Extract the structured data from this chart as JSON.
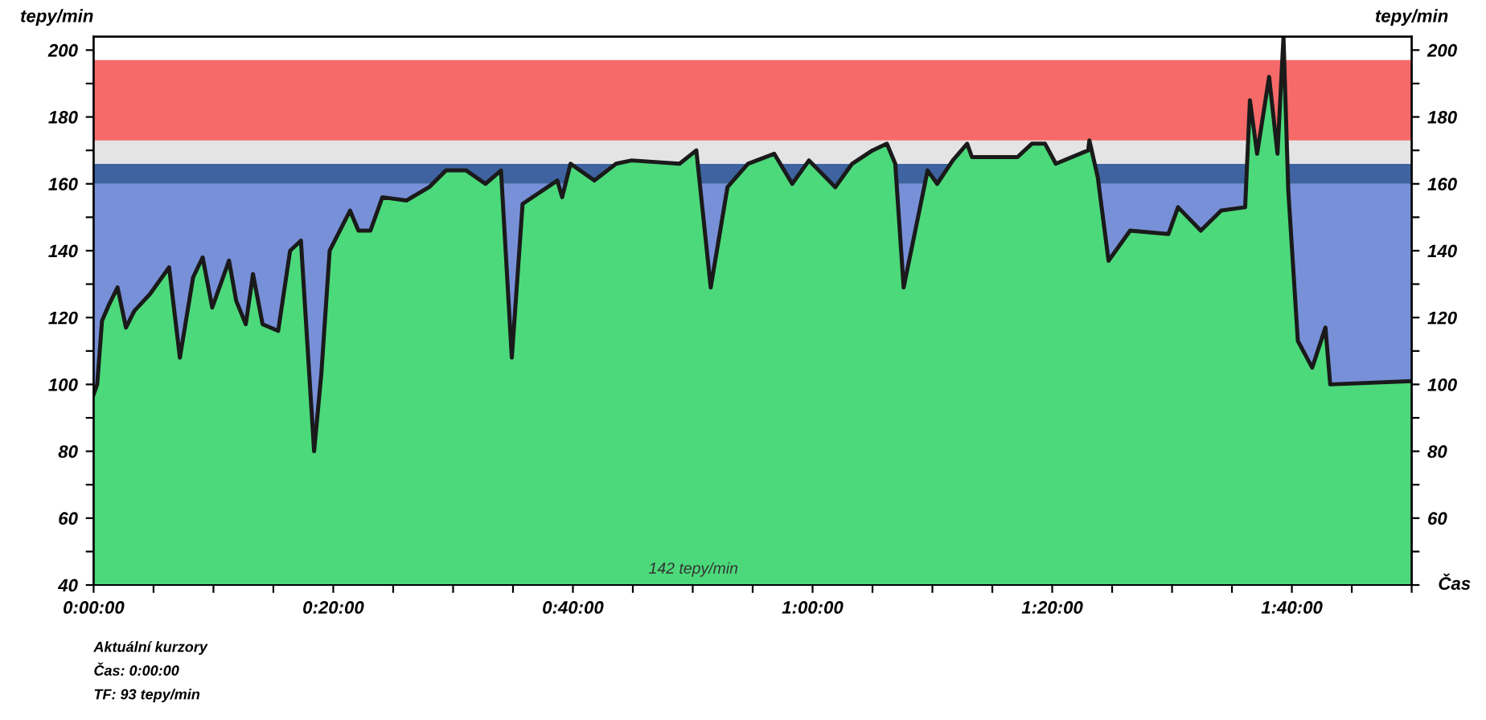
{
  "chart_data": {
    "type": "area",
    "ylabel": "tepy/min",
    "y2label": "tepy/min",
    "xlabel": "Čas",
    "annotations": [
      "142 tepy/min",
      "Aktuální kurzory",
      "Čas: 0:00:00",
      "TF: 93 tepy/min"
    ],
    "bands": [
      {
        "axis": "y",
        "from": 40,
        "to": 160,
        "color": "#7890d8"
      },
      {
        "axis": "y",
        "from": 160,
        "to": 166,
        "color": "#3f63a0"
      },
      {
        "axis": "y",
        "from": 166,
        "to": 173,
        "color": "#e4e4e4"
      },
      {
        "axis": "y",
        "from": 173,
        "to": 197,
        "color": "#f76a6a"
      }
    ],
    "series": [
      {
        "color": "#4cd97b",
        "x": [
          0,
          0.3,
          0.7,
          1.3,
          2.0,
          2.7,
          3.4,
          4.7,
          6.3,
          7.2,
          8.3,
          9.1,
          9.9,
          11.3,
          11.9,
          12.7,
          13.3,
          14.1,
          15.4,
          16.4,
          17.3,
          18.4,
          19.0,
          19.7,
          21.4,
          22.1,
          23.1,
          24.1,
          26.1,
          28.0,
          29.4,
          31.1,
          32.7,
          34.0,
          34.9,
          35.8,
          38.7,
          39.1,
          39.8,
          41.8,
          43.6,
          44.9,
          48.9,
          50.3,
          51.5,
          52.9,
          54.6,
          56.8,
          58.3,
          59.7,
          61.9,
          63.3,
          65.0,
          66.2,
          66.9,
          67.6,
          69.6,
          70.4,
          71.7,
          72.9,
          73.3,
          77.1,
          78.3,
          79.4,
          80.3,
          83.0,
          83.1,
          83.8,
          84.7,
          86.5,
          89.7,
          90.5,
          92.4,
          94.1,
          96.1,
          96.5,
          97.1,
          98.1,
          98.8,
          99.3,
          99.7,
          100.5,
          101.7,
          102.8,
          103.2,
          109.9
        ],
        "values": [
          97,
          100,
          119,
          124,
          129,
          117,
          122,
          127,
          135,
          108,
          132,
          138,
          123,
          137,
          125,
          118,
          133,
          118,
          116,
          140,
          143,
          80,
          103,
          140,
          152,
          146,
          146,
          156,
          155,
          159,
          164,
          164,
          160,
          164,
          108,
          154,
          161,
          156,
          166,
          161,
          166,
          167,
          166,
          170,
          129,
          159,
          166,
          169,
          160,
          167,
          159,
          166,
          170,
          172,
          166,
          129,
          164,
          160,
          167,
          172,
          168,
          168,
          172,
          172,
          166,
          170,
          173,
          162,
          137,
          146,
          145,
          153,
          146,
          152,
          153,
          185,
          169,
          192,
          169,
          204,
          158,
          113,
          105,
          117,
          100,
          101
        ]
      }
    ],
    "xlim": [
      0,
      110
    ],
    "xticks": [
      {
        "value": 0,
        "label": "0:00:00"
      },
      {
        "value": 5,
        "label": null
      },
      {
        "value": 10,
        "label": null
      },
      {
        "value": 15,
        "label": null
      },
      {
        "value": 20,
        "label": "0:20:00"
      },
      {
        "value": 25,
        "label": null
      },
      {
        "value": 30,
        "label": null
      },
      {
        "value": 35,
        "label": null
      },
      {
        "value": 40,
        "label": "0:40:00"
      },
      {
        "value": 45,
        "label": null
      },
      {
        "value": 50,
        "label": null
      },
      {
        "value": 55,
        "label": null
      },
      {
        "value": 60,
        "label": "1:00:00"
      },
      {
        "value": 65,
        "label": null
      },
      {
        "value": 70,
        "label": null
      },
      {
        "value": 75,
        "label": null
      },
      {
        "value": 80,
        "label": "1:20:00"
      },
      {
        "value": 85,
        "label": null
      },
      {
        "value": 90,
        "label": null
      },
      {
        "value": 95,
        "label": null
      },
      {
        "value": 100,
        "label": "1:40:00"
      },
      {
        "value": 105,
        "label": null
      },
      {
        "value": 110,
        "label": null
      }
    ],
    "ylim": [
      40,
      204
    ],
    "yticks": [
      40,
      {
        "value": 50,
        "label": null
      },
      60,
      {
        "value": 70,
        "label": null
      },
      80,
      {
        "value": 90,
        "label": null
      },
      100,
      {
        "value": 110,
        "label": null
      },
      120,
      {
        "value": 130,
        "label": null
      },
      140,
      {
        "value": 150,
        "label": null
      },
      160,
      {
        "value": 170,
        "label": null
      },
      180,
      {
        "value": 190,
        "label": null
      },
      200
    ],
    "y2lim": [
      40,
      204
    ],
    "y2ticks": [
      {
        "value": 40,
        "label": null
      },
      {
        "value": 50,
        "label": null
      },
      60,
      {
        "value": 70,
        "label": null
      },
      80,
      {
        "value": 90,
        "label": null
      },
      100,
      {
        "value": 110,
        "label": null
      },
      120,
      {
        "value": 130,
        "label": null
      },
      140,
      {
        "value": 150,
        "label": null
      },
      160,
      {
        "value": 170,
        "label": null
      },
      180,
      {
        "value": 190,
        "label": null
      },
      200
    ],
    "grid": false,
    "legend": false
  }
}
